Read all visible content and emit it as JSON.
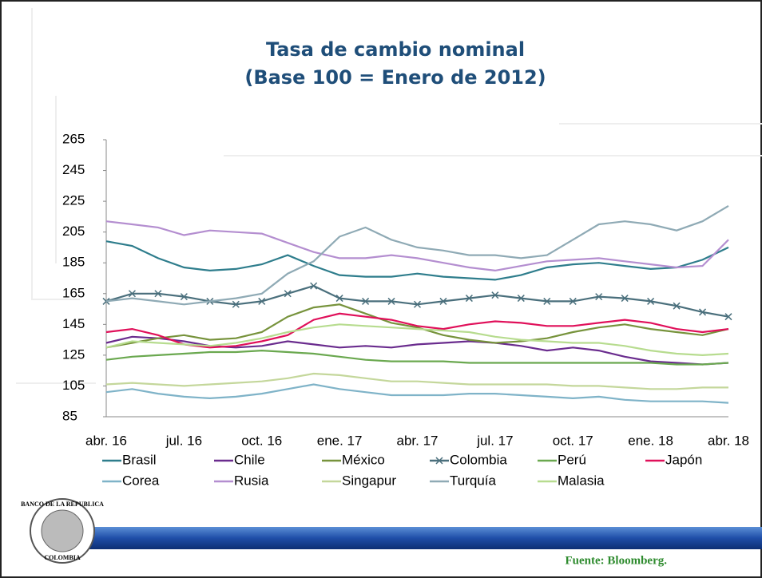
{
  "chart_data": {
    "type": "line",
    "title": [
      "Tasa de cambio nominal",
      "(Base 100 = Enero de 2012)"
    ],
    "categories": [
      "abr. 16",
      null,
      null,
      "jul. 16",
      null,
      null,
      "oct. 16",
      null,
      null,
      "ene. 17",
      null,
      null,
      "abr. 17",
      null,
      null,
      "jul. 17",
      null,
      null,
      "oct. 17",
      null,
      null,
      "ene. 18",
      null,
      null,
      "abr. 18"
    ],
    "ylim": [
      85,
      265
    ],
    "yticks": [
      85,
      105,
      125,
      145,
      165,
      185,
      205,
      225,
      245,
      265
    ],
    "grid": false,
    "series": [
      {
        "name": "Brasil",
        "color": "#2e7d8c",
        "values": [
          199,
          196,
          188,
          182,
          180,
          181,
          184,
          190,
          183,
          177,
          176,
          176,
          178,
          176,
          175,
          174,
          177,
          182,
          184,
          185,
          183,
          181,
          182,
          187,
          195
        ]
      },
      {
        "name": "Chile",
        "color": "#6a2c8e",
        "values": [
          133,
          137,
          136,
          134,
          131,
          130,
          131,
          134,
          132,
          130,
          131,
          130,
          132,
          133,
          134,
          133,
          131,
          128,
          130,
          128,
          124,
          121,
          120,
          119,
          120
        ]
      },
      {
        "name": "México",
        "color": "#77933c",
        "values": [
          130,
          133,
          136,
          138,
          135,
          136,
          140,
          150,
          156,
          158,
          152,
          146,
          143,
          138,
          135,
          133,
          134,
          136,
          140,
          143,
          145,
          142,
          140,
          138,
          142
        ]
      },
      {
        "name": "Colombia",
        "color": "#4a6f7c",
        "marker": "x",
        "values": [
          160,
          165,
          165,
          163,
          160,
          158,
          160,
          165,
          170,
          162,
          160,
          160,
          158,
          160,
          162,
          164,
          162,
          160,
          160,
          163,
          162,
          160,
          157,
          153,
          150
        ]
      },
      {
        "name": "Perú",
        "color": "#6aa84f",
        "values": [
          122,
          124,
          125,
          126,
          127,
          127,
          128,
          127,
          126,
          124,
          122,
          121,
          121,
          121,
          120,
          120,
          120,
          120,
          120,
          120,
          120,
          120,
          119,
          119,
          120
        ]
      },
      {
        "name": "Japón",
        "color": "#e0105a",
        "values": [
          140,
          142,
          138,
          132,
          130,
          131,
          134,
          138,
          148,
          152,
          150,
          148,
          144,
          142,
          145,
          147,
          146,
          144,
          144,
          146,
          148,
          146,
          142,
          140,
          142
        ]
      },
      {
        "name": "Corea",
        "color": "#7fb3c8",
        "values": [
          101,
          103,
          100,
          98,
          97,
          98,
          100,
          103,
          106,
          103,
          101,
          99,
          99,
          99,
          100,
          100,
          99,
          98,
          97,
          98,
          96,
          95,
          95,
          95,
          94
        ]
      },
      {
        "name": "Rusia",
        "color": "#b48ed0",
        "values": [
          212,
          210,
          208,
          203,
          206,
          205,
          204,
          198,
          192,
          188,
          188,
          190,
          188,
          185,
          182,
          180,
          183,
          186,
          187,
          188,
          186,
          184,
          182,
          183,
          200
        ]
      },
      {
        "name": "Singapur",
        "color": "#c4d79b",
        "values": [
          106,
          107,
          106,
          105,
          106,
          107,
          108,
          110,
          113,
          112,
          110,
          108,
          108,
          107,
          106,
          106,
          106,
          106,
          105,
          105,
          104,
          103,
          103,
          104,
          104
        ]
      },
      {
        "name": "Turquía",
        "color": "#8faab5",
        "values": [
          160,
          162,
          160,
          158,
          160,
          162,
          165,
          178,
          186,
          202,
          208,
          200,
          195,
          193,
          190,
          190,
          188,
          190,
          200,
          210,
          212,
          210,
          206,
          212,
          222
        ]
      },
      {
        "name": "Malasia",
        "color": "#b7dc8f",
        "values": [
          130,
          134,
          133,
          132,
          131,
          133,
          136,
          140,
          143,
          145,
          144,
          143,
          142,
          141,
          140,
          137,
          135,
          134,
          133,
          133,
          131,
          128,
          126,
          125,
          126
        ]
      }
    ]
  },
  "logo": {
    "top": "BANCO DE LA REPUBLICA",
    "bottom": "COLOMBIA"
  },
  "source": "Fuente: Bloomberg."
}
